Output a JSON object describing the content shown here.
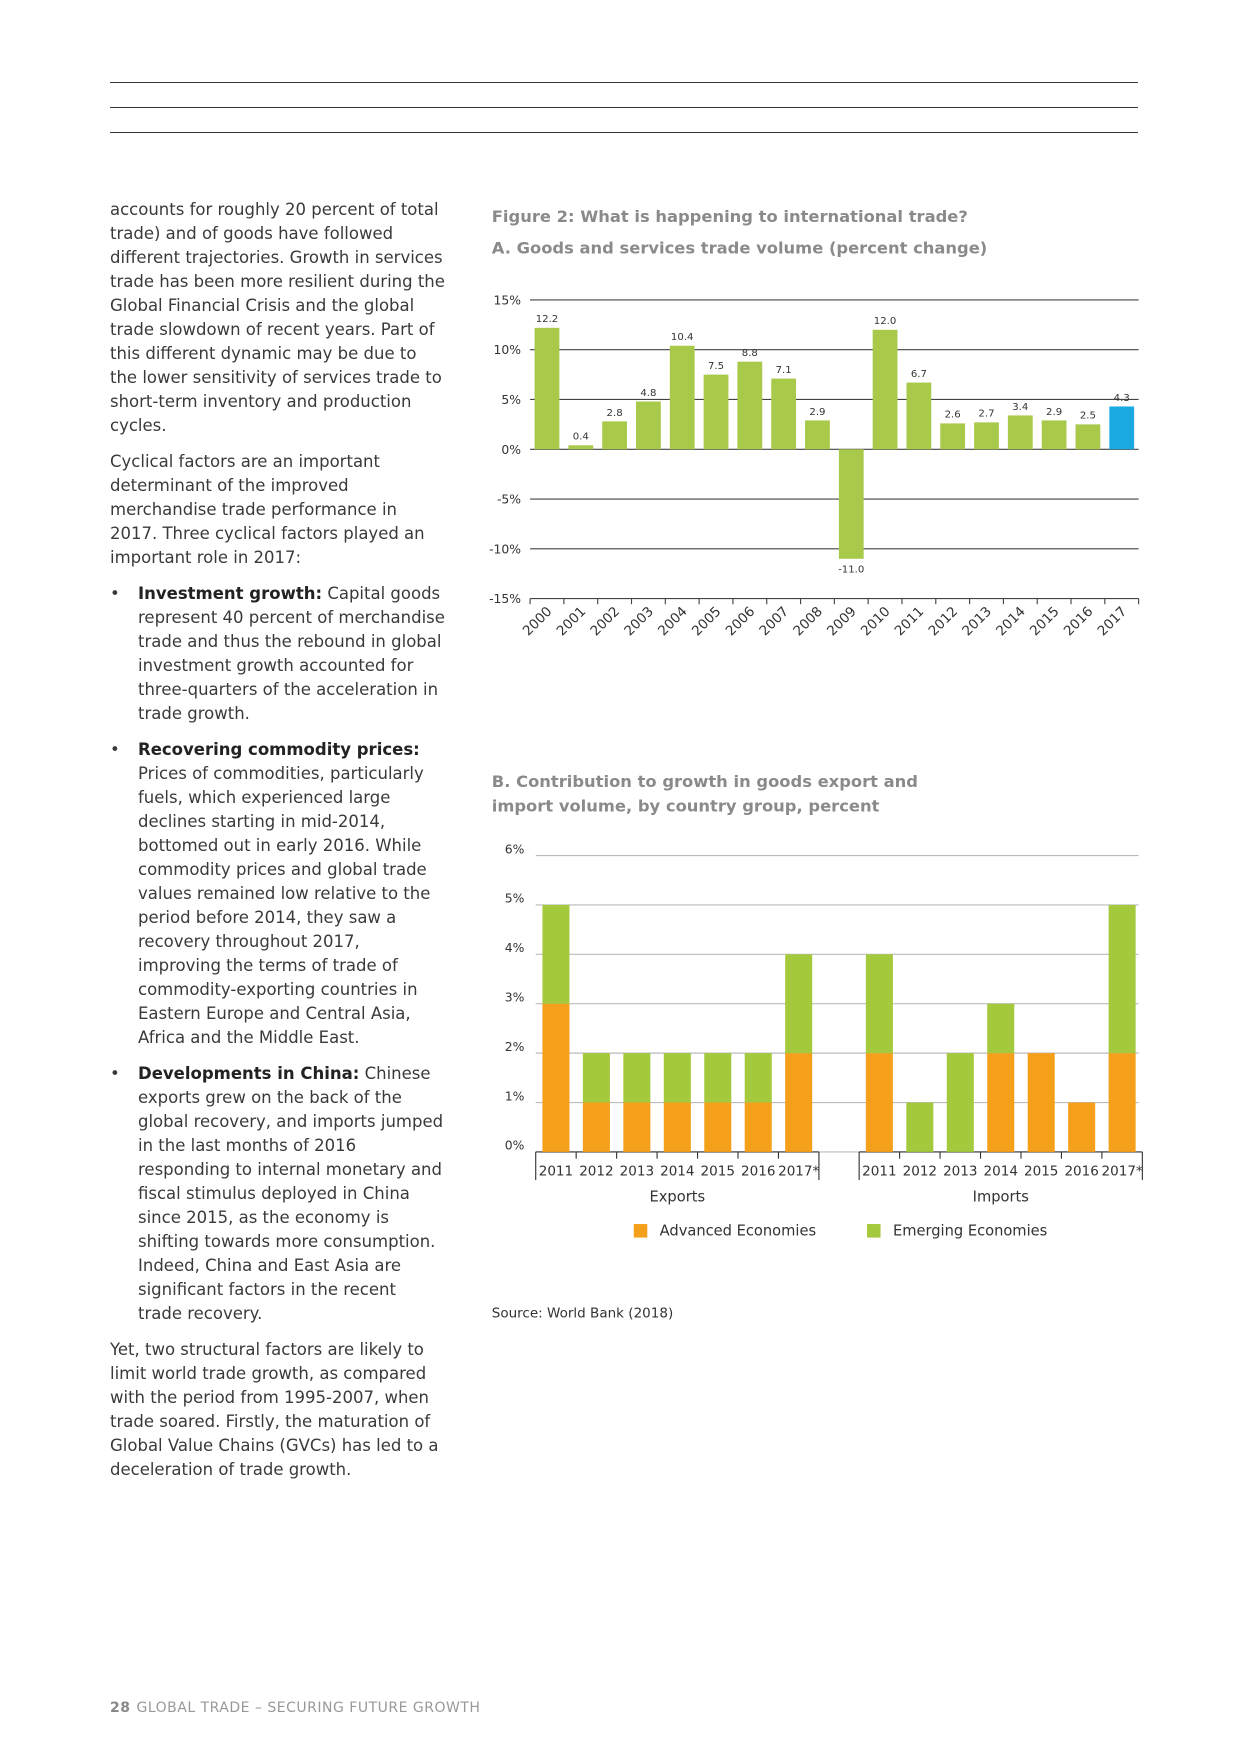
{
  "document": {
    "paragraphs": [
      "accounts for roughly 20 percent of total trade) and of goods have followed different trajectories. Growth in services trade has been more resilient during the Global Financial Crisis and the global trade slowdown of recent years. Part of this different dynamic may be due to the lower sensitivity of services trade to short-term inventory and production cycles.",
      "Cyclical factors are an important determinant of the improved merchandise trade performance in 2017. Three cyclical factors played an important role in 2017:"
    ],
    "bullets": [
      {
        "lead": "Investment growth:",
        "text": "Capital goods represent 40 percent of merchandise trade and thus the rebound in global investment growth accounted for three-quarters of the acceleration in trade growth."
      },
      {
        "lead": "Recovering commodity prices:",
        "text": "Prices of commodities, particularly fuels, which experienced large declines starting in mid-2014, bottomed out in early 2016. While commodity prices and global trade values remained low relative to the period before 2014, they saw a recovery throughout 2017, improving the terms of trade of commodity-exporting countries in Eastern Europe and Central Asia, Africa and the Middle East."
      },
      {
        "lead": "Developments in China:",
        "text": "Chinese exports grew on the back of the global recovery, and imports jumped in the last months of 2016 responding to internal monetary and fiscal stimulus deployed in China since 2015, as the economy is shifting towards more consumption. Indeed, China and East Asia are significant factors in the recent trade recovery."
      }
    ],
    "closing": "Yet, two structural factors are likely to limit world trade growth, as compared with the period from 1995-2007, when trade soared. Firstly, the maturation of Global Value Chains (GVCs) has led to a deceleration of trade growth."
  },
  "figure": {
    "title": "Figure 2: What is happening to international trade?",
    "source": "Source: World Bank (2018)"
  },
  "footer": {
    "page": "28",
    "title": "GLOBAL TRADE – SECURING FUTURE GROWTH"
  },
  "chart_data": [
    {
      "type": "bar",
      "title": "A. Goods and services trade volume (percent change)",
      "categories": [
        "2000",
        "2001",
        "2002",
        "2003",
        "2004",
        "2005",
        "2006",
        "2007",
        "2008",
        "2009",
        "2010",
        "2011",
        "2012",
        "2013",
        "2014",
        "2015",
        "2016",
        "2017"
      ],
      "values": [
        12.2,
        0.4,
        2.8,
        4.8,
        10.4,
        7.5,
        8.8,
        7.1,
        2.9,
        -11.0,
        12.0,
        6.7,
        2.6,
        2.7,
        3.4,
        2.9,
        2.5,
        4.3
      ],
      "value_labels": [
        "12.2",
        "0.4",
        "2.8",
        "4.8",
        "10.4",
        "7.5",
        "8.8",
        "7.1",
        "2.9",
        "-11.0",
        "12.0",
        "6.7",
        "2.6",
        "2.7",
        "3.4",
        "2.9",
        "2.5",
        "4.3"
      ],
      "colors": [
        "#a8c94a",
        "#a8c94a",
        "#a8c94a",
        "#a8c94a",
        "#a8c94a",
        "#a8c94a",
        "#a8c94a",
        "#a8c94a",
        "#a8c94a",
        "#a8c94a",
        "#a8c94a",
        "#a8c94a",
        "#a8c94a",
        "#a8c94a",
        "#a8c94a",
        "#a8c94a",
        "#a8c94a",
        "#1ba9e1"
      ],
      "ylim": [
        -15,
        15
      ],
      "yticks": [
        {
          "value": -15,
          "label": "-15%"
        },
        {
          "value": -10,
          "label": "-10%"
        },
        {
          "value": -5,
          "label": "-5%"
        },
        {
          "value": 0,
          "label": "0%"
        },
        {
          "value": 5,
          "label": "5%"
        },
        {
          "value": 10,
          "label": "10%"
        },
        {
          "value": 15,
          "label": "15%"
        }
      ],
      "grid": true
    },
    {
      "type": "stacked-bar",
      "title_lines": [
        "B. Contribution to growth in goods export and",
        "import volume, by country group, percent"
      ],
      "groups": [
        "Exports",
        "Imports"
      ],
      "categories": [
        "2011",
        "2012",
        "2013",
        "2014",
        "2015",
        "2016",
        "2017*",
        "2011",
        "2012",
        "2013",
        "2014",
        "2015",
        "2016",
        "2017*"
      ],
      "series": [
        {
          "name": "Advanced Economies",
          "color": "#f5a01a",
          "values": [
            3,
            1,
            1,
            1,
            1,
            1,
            2,
            2,
            0,
            0,
            2,
            2,
            1,
            2
          ]
        },
        {
          "name": "Emerging Economies",
          "color": "#a5c93d",
          "values": [
            2,
            1,
            1,
            1,
            1,
            1,
            2,
            2,
            1,
            2,
            1,
            0,
            0,
            3
          ]
        }
      ],
      "ylim": [
        0,
        6
      ],
      "yticks": [
        {
          "value": 0,
          "label": "0%"
        },
        {
          "value": 1,
          "label": "1%"
        },
        {
          "value": 2,
          "label": "2%"
        },
        {
          "value": 3,
          "label": "3%"
        },
        {
          "value": 4,
          "label": "4%"
        },
        {
          "value": 5,
          "label": "5%"
        },
        {
          "value": 6,
          "label": "6%"
        }
      ],
      "grid": true,
      "legend": "bottom"
    }
  ]
}
